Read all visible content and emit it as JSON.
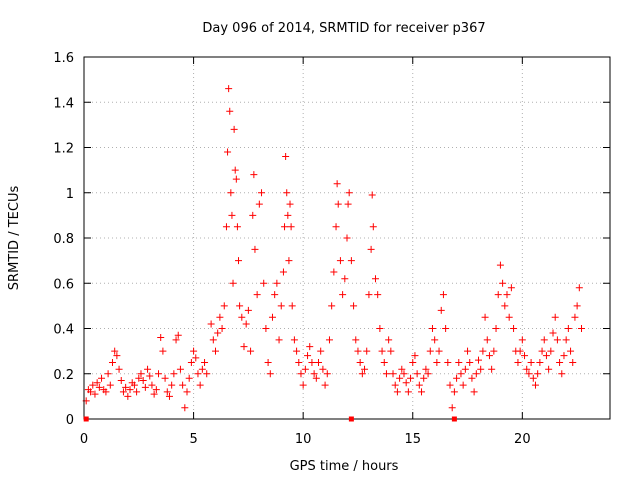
{
  "chart_data": {
    "type": "scatter",
    "title": "Day 096 of 2014, SRMTID for receiver p367",
    "xlabel": "GPS time / hours",
    "ylabel": "SRMTID / TECUs",
    "xlim": [
      0,
      24
    ],
    "ylim": [
      0,
      1.6
    ],
    "x_ticks": [
      0,
      5,
      10,
      15,
      20
    ],
    "x_tick_labels": [
      "0",
      "5",
      "10",
      "15",
      "20"
    ],
    "y_ticks": [
      0,
      0.2,
      0.4,
      0.6,
      0.8,
      1.0,
      1.2,
      1.4,
      1.6
    ],
    "y_tick_labels": [
      "0",
      "0.2",
      "0.4",
      "0.6",
      "0.8",
      "1",
      "1.2",
      "1.4",
      "1.6"
    ],
    "grid": true,
    "marker": "+",
    "series_color": "#ff0000",
    "gap_markers_x": [
      0.1,
      12.2,
      16.9
    ],
    "series": [
      {
        "name": "SRMTID",
        "points": [
          [
            0.1,
            0.08
          ],
          [
            0.2,
            0.13
          ],
          [
            0.3,
            0.12
          ],
          [
            0.4,
            0.15
          ],
          [
            0.5,
            0.11
          ],
          [
            0.6,
            0.16
          ],
          [
            0.7,
            0.14
          ],
          [
            0.8,
            0.18
          ],
          [
            0.9,
            0.13
          ],
          [
            1.0,
            0.12
          ],
          [
            1.1,
            0.2
          ],
          [
            1.2,
            0.15
          ],
          [
            1.3,
            0.25
          ],
          [
            1.4,
            0.3
          ],
          [
            1.5,
            0.28
          ],
          [
            1.6,
            0.22
          ],
          [
            1.7,
            0.17
          ],
          [
            1.8,
            0.12
          ],
          [
            1.9,
            0.14
          ],
          [
            2.0,
            0.1
          ],
          [
            2.1,
            0.13
          ],
          [
            2.2,
            0.16
          ],
          [
            2.3,
            0.15
          ],
          [
            2.4,
            0.12
          ],
          [
            2.5,
            0.18
          ],
          [
            2.6,
            0.2
          ],
          [
            2.7,
            0.17
          ],
          [
            2.8,
            0.14
          ],
          [
            2.9,
            0.22
          ],
          [
            3.0,
            0.19
          ],
          [
            3.1,
            0.15
          ],
          [
            3.2,
            0.11
          ],
          [
            3.3,
            0.13
          ],
          [
            3.4,
            0.2
          ],
          [
            3.5,
            0.36
          ],
          [
            3.6,
            0.3
          ],
          [
            3.7,
            0.18
          ],
          [
            3.8,
            0.12
          ],
          [
            3.9,
            0.1
          ],
          [
            4.0,
            0.15
          ],
          [
            4.1,
            0.2
          ],
          [
            4.2,
            0.35
          ],
          [
            4.3,
            0.37
          ],
          [
            4.4,
            0.22
          ],
          [
            4.5,
            0.15
          ],
          [
            4.6,
            0.05
          ],
          [
            4.7,
            0.12
          ],
          [
            4.8,
            0.18
          ],
          [
            4.9,
            0.25
          ],
          [
            5.0,
            0.3
          ],
          [
            5.1,
            0.27
          ],
          [
            5.2,
            0.2
          ],
          [
            5.3,
            0.15
          ],
          [
            5.4,
            0.22
          ],
          [
            5.5,
            0.25
          ],
          [
            5.6,
            0.2
          ],
          [
            5.8,
            0.42
          ],
          [
            5.9,
            0.35
          ],
          [
            6.0,
            0.3
          ],
          [
            6.1,
            0.38
          ],
          [
            6.2,
            0.45
          ],
          [
            6.3,
            0.4
          ],
          [
            6.4,
            0.5
          ],
          [
            6.5,
            0.85
          ],
          [
            6.55,
            1.18
          ],
          [
            6.6,
            1.46
          ],
          [
            6.65,
            1.36
          ],
          [
            6.7,
            1.0
          ],
          [
            6.75,
            0.9
          ],
          [
            6.8,
            0.6
          ],
          [
            6.85,
            1.28
          ],
          [
            6.9,
            1.1
          ],
          [
            6.95,
            1.06
          ],
          [
            7.0,
            0.85
          ],
          [
            7.05,
            0.7
          ],
          [
            7.1,
            0.5
          ],
          [
            7.2,
            0.45
          ],
          [
            7.3,
            0.32
          ],
          [
            7.4,
            0.42
          ],
          [
            7.5,
            0.48
          ],
          [
            7.6,
            0.3
          ],
          [
            7.7,
            0.9
          ],
          [
            7.75,
            1.08
          ],
          [
            7.8,
            0.75
          ],
          [
            7.9,
            0.55
          ],
          [
            8.0,
            0.95
          ],
          [
            8.1,
            1.0
          ],
          [
            8.2,
            0.6
          ],
          [
            8.3,
            0.4
          ],
          [
            8.4,
            0.25
          ],
          [
            8.5,
            0.2
          ],
          [
            8.6,
            0.45
          ],
          [
            8.7,
            0.55
          ],
          [
            8.8,
            0.6
          ],
          [
            8.9,
            0.35
          ],
          [
            9.0,
            0.5
          ],
          [
            9.1,
            0.65
          ],
          [
            9.15,
            0.85
          ],
          [
            9.2,
            1.16
          ],
          [
            9.25,
            1.0
          ],
          [
            9.3,
            0.9
          ],
          [
            9.35,
            0.7
          ],
          [
            9.4,
            0.95
          ],
          [
            9.45,
            0.85
          ],
          [
            9.5,
            0.5
          ],
          [
            9.6,
            0.35
          ],
          [
            9.7,
            0.3
          ],
          [
            9.8,
            0.25
          ],
          [
            9.9,
            0.2
          ],
          [
            10.0,
            0.15
          ],
          [
            10.1,
            0.22
          ],
          [
            10.2,
            0.28
          ],
          [
            10.3,
            0.32
          ],
          [
            10.4,
            0.25
          ],
          [
            10.5,
            0.2
          ],
          [
            10.6,
            0.18
          ],
          [
            10.7,
            0.25
          ],
          [
            10.8,
            0.3
          ],
          [
            10.9,
            0.22
          ],
          [
            11.0,
            0.15
          ],
          [
            11.1,
            0.2
          ],
          [
            11.2,
            0.35
          ],
          [
            11.3,
            0.5
          ],
          [
            11.4,
            0.65
          ],
          [
            11.5,
            0.85
          ],
          [
            11.55,
            1.04
          ],
          [
            11.6,
            0.95
          ],
          [
            11.7,
            0.7
          ],
          [
            11.8,
            0.55
          ],
          [
            11.9,
            0.62
          ],
          [
            12.0,
            0.8
          ],
          [
            12.05,
            0.95
          ],
          [
            12.1,
            1.0
          ],
          [
            12.2,
            0.7
          ],
          [
            12.3,
            0.5
          ],
          [
            12.4,
            0.35
          ],
          [
            12.5,
            0.3
          ],
          [
            12.6,
            0.25
          ],
          [
            12.7,
            0.2
          ],
          [
            12.8,
            0.22
          ],
          [
            12.9,
            0.3
          ],
          [
            13.0,
            0.55
          ],
          [
            13.1,
            0.75
          ],
          [
            13.15,
            0.99
          ],
          [
            13.2,
            0.85
          ],
          [
            13.3,
            0.62
          ],
          [
            13.4,
            0.55
          ],
          [
            13.5,
            0.4
          ],
          [
            13.6,
            0.3
          ],
          [
            13.7,
            0.25
          ],
          [
            13.8,
            0.2
          ],
          [
            13.9,
            0.35
          ],
          [
            14.0,
            0.3
          ],
          [
            14.1,
            0.2
          ],
          [
            14.2,
            0.15
          ],
          [
            14.3,
            0.12
          ],
          [
            14.4,
            0.18
          ],
          [
            14.5,
            0.22
          ],
          [
            14.6,
            0.2
          ],
          [
            14.7,
            0.16
          ],
          [
            14.8,
            0.12
          ],
          [
            14.9,
            0.18
          ],
          [
            15.0,
            0.25
          ],
          [
            15.1,
            0.28
          ],
          [
            15.2,
            0.2
          ],
          [
            15.3,
            0.15
          ],
          [
            15.4,
            0.12
          ],
          [
            15.5,
            0.18
          ],
          [
            15.6,
            0.22
          ],
          [
            15.7,
            0.2
          ],
          [
            15.8,
            0.3
          ],
          [
            15.9,
            0.4
          ],
          [
            16.0,
            0.35
          ],
          [
            16.1,
            0.25
          ],
          [
            16.2,
            0.3
          ],
          [
            16.3,
            0.48
          ],
          [
            16.4,
            0.55
          ],
          [
            16.5,
            0.4
          ],
          [
            16.6,
            0.25
          ],
          [
            16.7,
            0.15
          ],
          [
            16.8,
            0.05
          ],
          [
            16.9,
            0.12
          ],
          [
            17.0,
            0.18
          ],
          [
            17.1,
            0.25
          ],
          [
            17.2,
            0.2
          ],
          [
            17.3,
            0.15
          ],
          [
            17.4,
            0.22
          ],
          [
            17.5,
            0.3
          ],
          [
            17.6,
            0.25
          ],
          [
            17.7,
            0.18
          ],
          [
            17.8,
            0.12
          ],
          [
            17.9,
            0.2
          ],
          [
            18.0,
            0.26
          ],
          [
            18.1,
            0.22
          ],
          [
            18.2,
            0.3
          ],
          [
            18.3,
            0.45
          ],
          [
            18.4,
            0.35
          ],
          [
            18.5,
            0.28
          ],
          [
            18.6,
            0.22
          ],
          [
            18.7,
            0.3
          ],
          [
            18.8,
            0.4
          ],
          [
            18.9,
            0.55
          ],
          [
            19.0,
            0.68
          ],
          [
            19.1,
            0.6
          ],
          [
            19.2,
            0.5
          ],
          [
            19.3,
            0.55
          ],
          [
            19.4,
            0.45
          ],
          [
            19.5,
            0.58
          ],
          [
            19.6,
            0.4
          ],
          [
            19.7,
            0.3
          ],
          [
            19.8,
            0.25
          ],
          [
            19.9,
            0.3
          ],
          [
            20.0,
            0.35
          ],
          [
            20.1,
            0.28
          ],
          [
            20.2,
            0.22
          ],
          [
            20.3,
            0.2
          ],
          [
            20.4,
            0.25
          ],
          [
            20.5,
            0.18
          ],
          [
            20.6,
            0.15
          ],
          [
            20.7,
            0.2
          ],
          [
            20.8,
            0.25
          ],
          [
            20.9,
            0.3
          ],
          [
            21.0,
            0.35
          ],
          [
            21.1,
            0.28
          ],
          [
            21.2,
            0.22
          ],
          [
            21.3,
            0.3
          ],
          [
            21.4,
            0.38
          ],
          [
            21.5,
            0.45
          ],
          [
            21.6,
            0.35
          ],
          [
            21.7,
            0.25
          ],
          [
            21.8,
            0.2
          ],
          [
            21.9,
            0.28
          ],
          [
            22.0,
            0.35
          ],
          [
            22.1,
            0.4
          ],
          [
            22.2,
            0.3
          ],
          [
            22.3,
            0.25
          ],
          [
            22.4,
            0.45
          ],
          [
            22.5,
            0.5
          ],
          [
            22.6,
            0.58
          ],
          [
            22.7,
            0.4
          ]
        ]
      }
    ]
  }
}
